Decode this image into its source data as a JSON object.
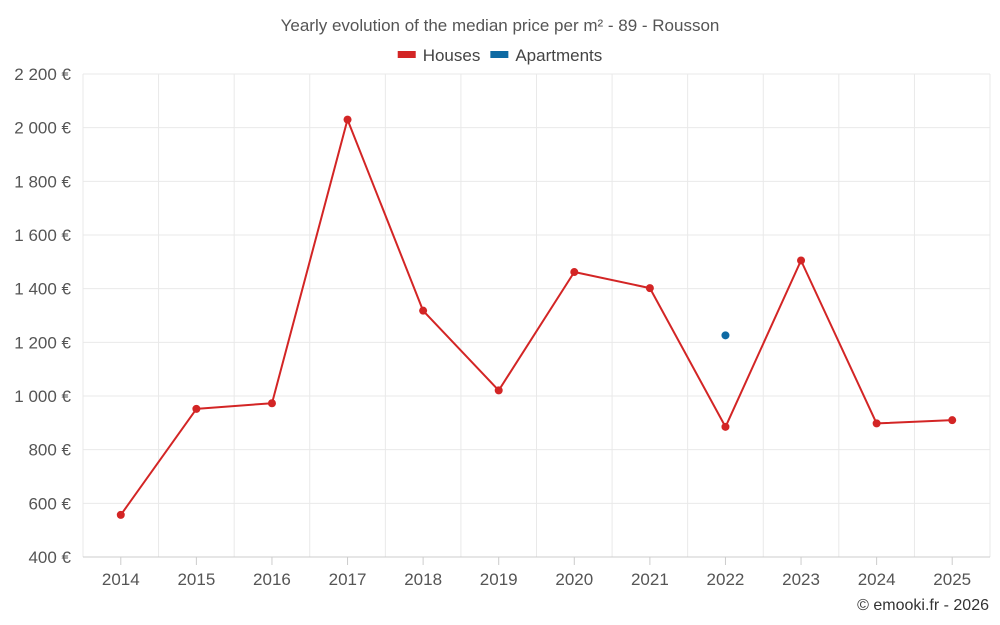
{
  "chart_data": {
    "type": "line",
    "title": "Yearly evolution of the median price per m² - 89 - Rousson",
    "categories": [
      "2014",
      "2015",
      "2016",
      "2017",
      "2018",
      "2019",
      "2020",
      "2021",
      "2022",
      "2023",
      "2024",
      "2025"
    ],
    "series": [
      {
        "name": "Houses",
        "color": "#d32525",
        "values": [
          557,
          952,
          973,
          2030,
          1318,
          1021,
          1462,
          1402,
          885,
          1505,
          898,
          910
        ]
      },
      {
        "name": "Apartments",
        "color": "#0e6aa3",
        "values": [
          null,
          null,
          null,
          null,
          null,
          null,
          null,
          null,
          1226,
          null,
          null,
          null
        ]
      }
    ],
    "ylim": [
      400,
      2200
    ],
    "yticks": [
      400,
      600,
      800,
      1000,
      1200,
      1400,
      1600,
      1800,
      2000,
      2200
    ],
    "ytick_labels": [
      "400 €",
      "600 €",
      "800 €",
      "1 000 €",
      "1 200 €",
      "1 400 €",
      "1 600 €",
      "1 800 €",
      "2 000 €",
      "2 200 €"
    ],
    "xlabel": "",
    "ylabel": "",
    "legend_position": "top-center",
    "grid": true
  },
  "credit": "© emooki.fr - 2026"
}
